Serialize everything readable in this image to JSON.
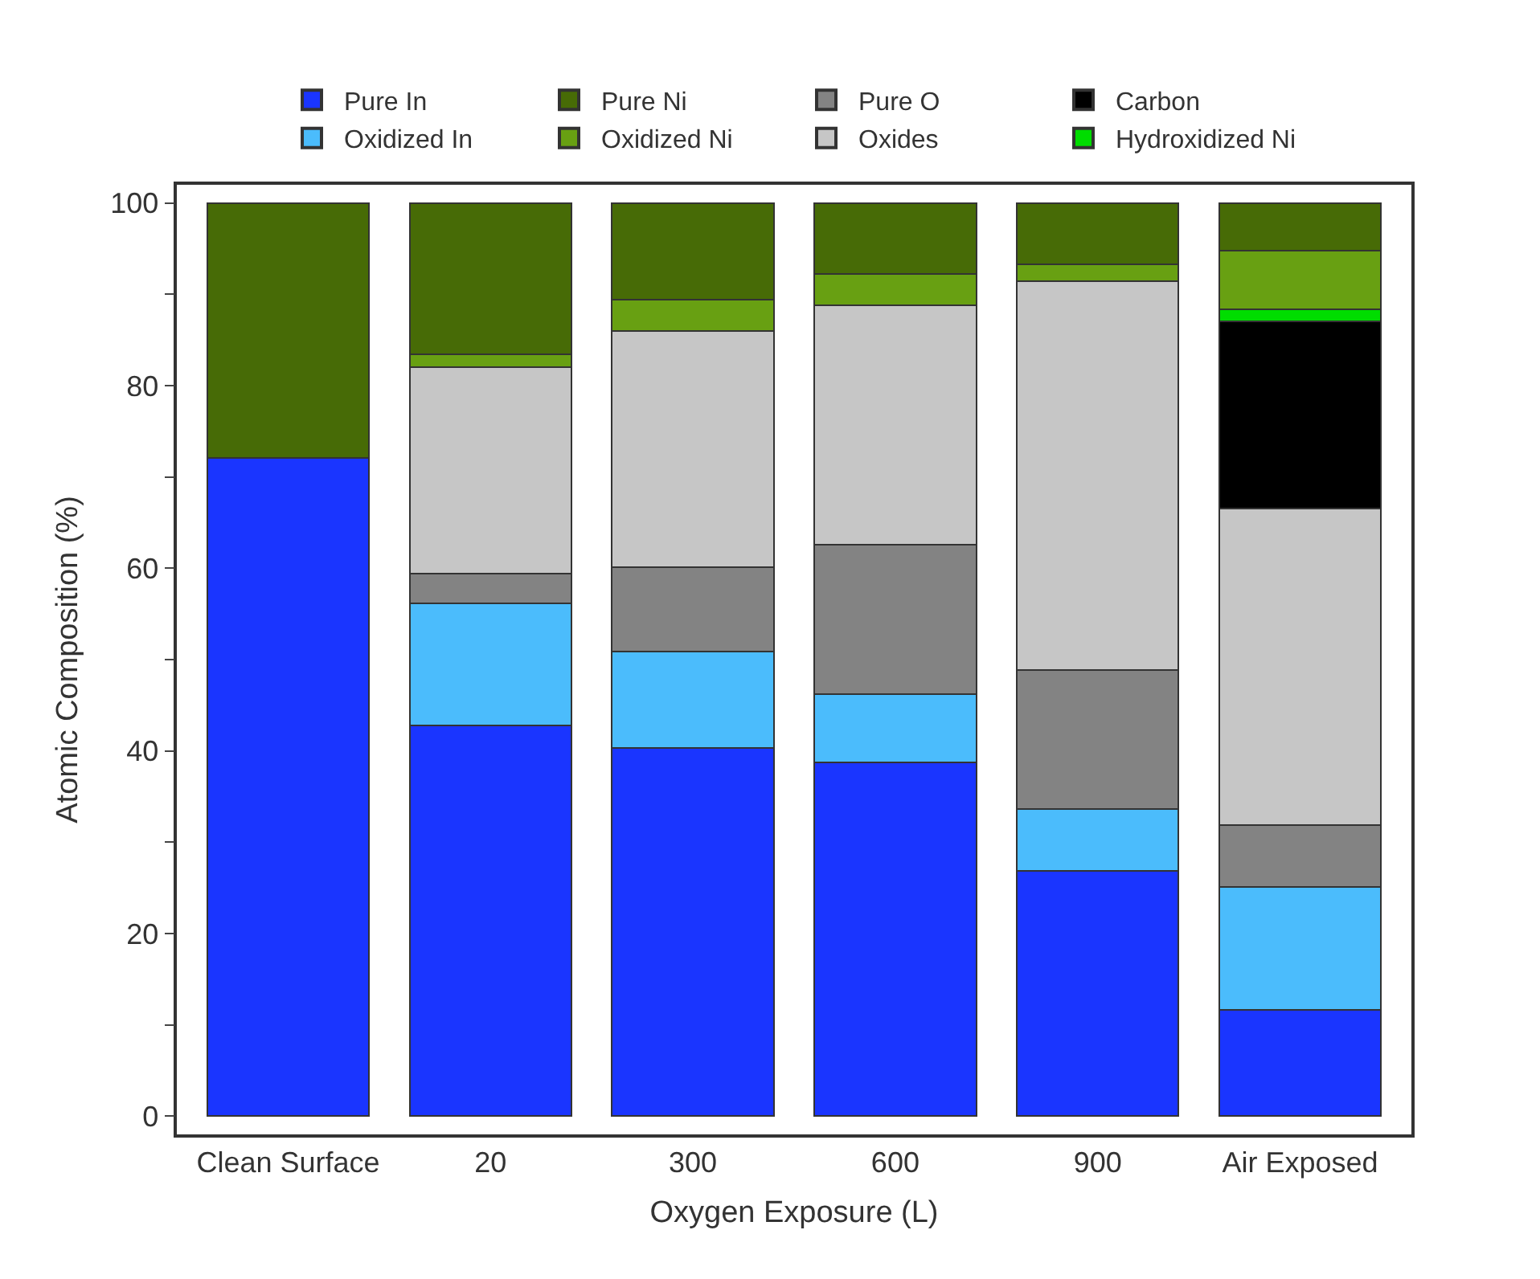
{
  "chart_data": {
    "type": "bar",
    "stacked": true,
    "xlabel": "Oxygen Exposure (L)",
    "ylabel": "Atomic Composition (%)",
    "categories": [
      "Clean Surface",
      "20",
      "300",
      "600",
      "900",
      "Air Exposed"
    ],
    "series": [
      {
        "name": "Pure In",
        "color": "#1a35ff",
        "values": [
          72.1,
          42.8,
          40.3,
          38.7,
          26.9,
          11.6
        ]
      },
      {
        "name": "Oxidized In",
        "color": "#4bbcfc",
        "values": [
          null,
          13.4,
          10.6,
          7.5,
          6.7,
          13.5
        ]
      },
      {
        "name": "Pure O",
        "color": "#838383",
        "values": [
          null,
          3.2,
          9.2,
          16.4,
          15.3,
          6.8
        ]
      },
      {
        "name": "Oxides",
        "color": "#c6c6c6",
        "values": [
          null,
          22.6,
          25.9,
          26.2,
          42.5,
          34.6
        ]
      },
      {
        "name": "Carbon",
        "color": "#000000",
        "values": [
          null,
          null,
          null,
          null,
          null,
          20.5
        ]
      },
      {
        "name": "Hydroxidized Ni",
        "color": "#00dd00",
        "values": [
          null,
          null,
          null,
          null,
          null,
          1.4
        ]
      },
      {
        "name": "Oxidized Ni",
        "color": "#68a012",
        "values": [
          null,
          1.4,
          3.4,
          3.4,
          1.9,
          6.4
        ]
      },
      {
        "name": "Pure Ni",
        "color": "#476b06",
        "values": [
          27.9,
          16.6,
          10.6,
          7.8,
          6.7,
          5.2
        ]
      }
    ],
    "ylim": [
      -2,
      102
    ],
    "yticks": [
      0,
      {
        "value": 10,
        "label": null
      },
      20,
      {
        "value": 30,
        "label": null
      },
      40,
      {
        "value": 50,
        "label": null
      },
      60,
      {
        "value": 70,
        "label": null
      },
      80,
      {
        "value": 90,
        "label": null
      },
      100
    ],
    "legend": "top"
  }
}
